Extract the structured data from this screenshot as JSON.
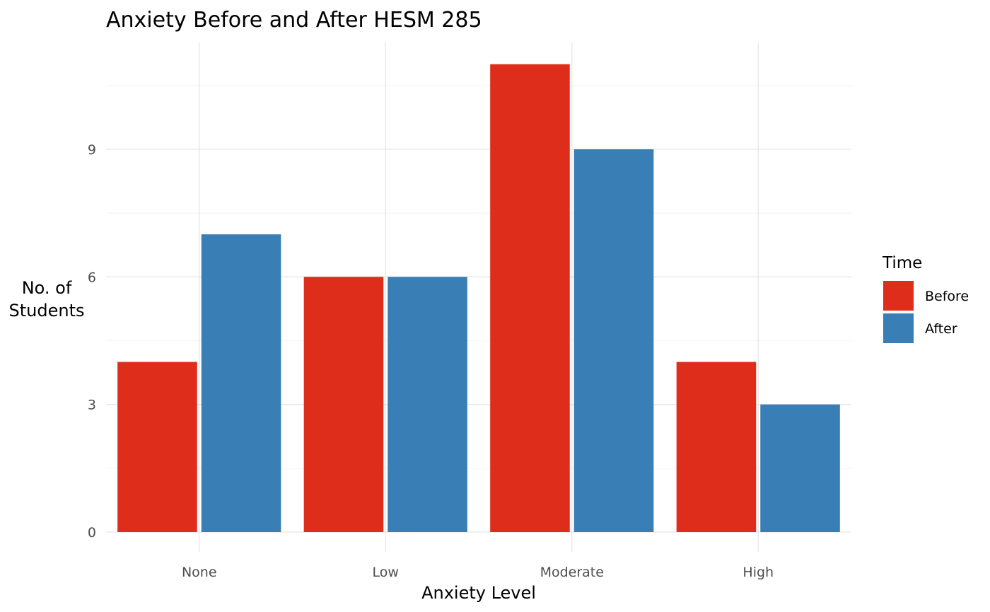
{
  "chart_data": {
    "type": "bar",
    "title": "Anxiety Before and After HESM 285",
    "xlabel": "Anxiety Level",
    "ylabel_lines": [
      "No. of",
      "Students"
    ],
    "categories": [
      "None",
      "Low",
      "Moderate",
      "High"
    ],
    "series": [
      {
        "name": "Before",
        "color": "#de2d1a",
        "values": [
          4,
          6,
          11,
          4
        ]
      },
      {
        "name": "After",
        "color": "#3a7eb6",
        "values": [
          7,
          6,
          9,
          3
        ]
      }
    ],
    "ylim": [
      0,
      11.55
    ],
    "yticks": [
      0,
      3,
      6,
      9
    ],
    "grid": true,
    "legend": {
      "title": "Time",
      "position": "right"
    }
  }
}
